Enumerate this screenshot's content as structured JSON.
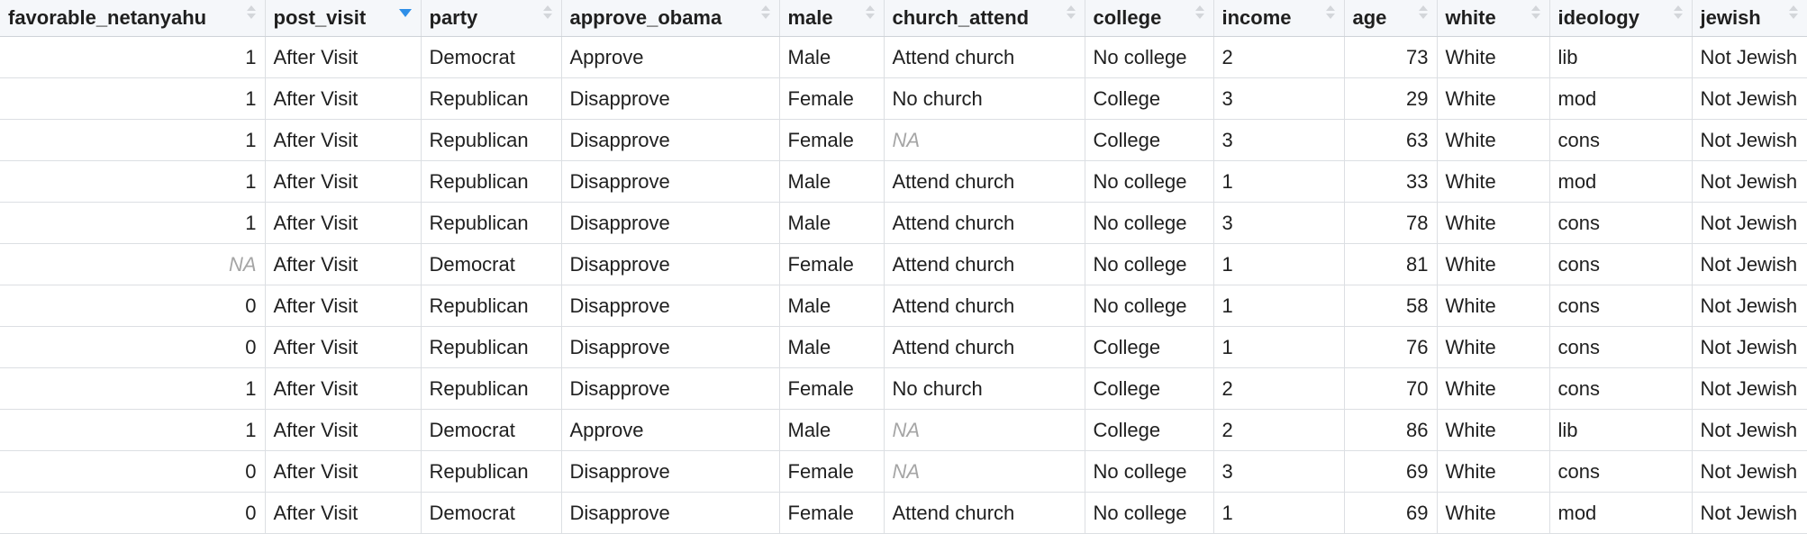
{
  "columns": [
    {
      "label": "favorable_netanyahu",
      "align": "right",
      "sorted": false
    },
    {
      "label": "post_visit",
      "align": "left",
      "sorted": true
    },
    {
      "label": "party",
      "align": "left",
      "sorted": false
    },
    {
      "label": "approve_obama",
      "align": "left",
      "sorted": false
    },
    {
      "label": "male",
      "align": "left",
      "sorted": false
    },
    {
      "label": "church_attend",
      "align": "left",
      "sorted": false
    },
    {
      "label": "college",
      "align": "left",
      "sorted": false
    },
    {
      "label": "income",
      "align": "left",
      "sorted": false
    },
    {
      "label": "age",
      "align": "right",
      "sorted": false
    },
    {
      "label": "white",
      "align": "left",
      "sorted": false
    },
    {
      "label": "ideology",
      "align": "left",
      "sorted": false
    },
    {
      "label": "jewish",
      "align": "left",
      "sorted": false
    }
  ],
  "rows": [
    [
      "1",
      "After Visit",
      "Democrat",
      "Approve",
      "Male",
      "Attend church",
      "No college",
      "2",
      "73",
      "White",
      "lib",
      "Not Jewish"
    ],
    [
      "1",
      "After Visit",
      "Republican",
      "Disapprove",
      "Female",
      "No church",
      "College",
      "3",
      "29",
      "White",
      "mod",
      "Not Jewish"
    ],
    [
      "1",
      "After Visit",
      "Republican",
      "Disapprove",
      "Female",
      "NA",
      "College",
      "3",
      "63",
      "White",
      "cons",
      "Not Jewish"
    ],
    [
      "1",
      "After Visit",
      "Republican",
      "Disapprove",
      "Male",
      "Attend church",
      "No college",
      "1",
      "33",
      "White",
      "mod",
      "Not Jewish"
    ],
    [
      "1",
      "After Visit",
      "Republican",
      "Disapprove",
      "Male",
      "Attend church",
      "No college",
      "3",
      "78",
      "White",
      "cons",
      "Not Jewish"
    ],
    [
      "NA",
      "After Visit",
      "Democrat",
      "Disapprove",
      "Female",
      "Attend church",
      "No college",
      "1",
      "81",
      "White",
      "cons",
      "Not Jewish"
    ],
    [
      "0",
      "After Visit",
      "Republican",
      "Disapprove",
      "Male",
      "Attend church",
      "No college",
      "1",
      "58",
      "White",
      "cons",
      "Not Jewish"
    ],
    [
      "0",
      "After Visit",
      "Republican",
      "Disapprove",
      "Male",
      "Attend church",
      "College",
      "1",
      "76",
      "White",
      "cons",
      "Not Jewish"
    ],
    [
      "1",
      "After Visit",
      "Republican",
      "Disapprove",
      "Female",
      "No church",
      "College",
      "2",
      "70",
      "White",
      "cons",
      "Not Jewish"
    ],
    [
      "1",
      "After Visit",
      "Democrat",
      "Approve",
      "Male",
      "NA",
      "College",
      "2",
      "86",
      "White",
      "lib",
      "Not Jewish"
    ],
    [
      "0",
      "After Visit",
      "Republican",
      "Disapprove",
      "Female",
      "NA",
      "No college",
      "3",
      "69",
      "White",
      "cons",
      "Not Jewish"
    ],
    [
      "0",
      "After Visit",
      "Democrat",
      "Disapprove",
      "Female",
      "Attend church",
      "No college",
      "1",
      "69",
      "White",
      "mod",
      "Not Jewish"
    ]
  ],
  "colors": {
    "header_bg": "#f5f7fa",
    "grid": "#dcdfe3",
    "sort_active": "#2f8fe8",
    "na_text": "#a5a5a5"
  }
}
